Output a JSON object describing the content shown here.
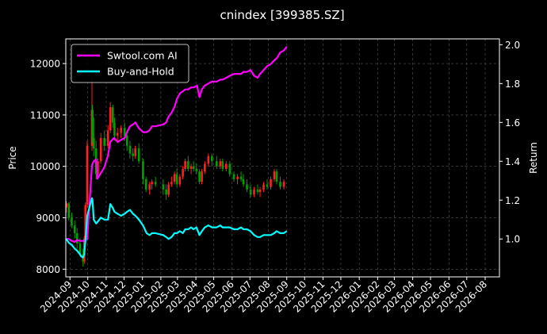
{
  "chart_data": {
    "type": "line",
    "title": "cnindex [399385.SZ]",
    "ylabel": "Price",
    "y2label": "Return",
    "background": "#000000",
    "grid": true,
    "legend_position": "upper-left",
    "ylim": [
      7850,
      12480
    ],
    "y2lim": [
      0.805,
      2.03
    ],
    "xlim": [
      "2024-08-25",
      "2026-08-25"
    ],
    "y_ticks": [
      8000,
      9000,
      10000,
      11000,
      12000
    ],
    "y2_ticks": [
      1.0,
      1.2,
      1.4,
      1.6,
      1.8,
      2.0
    ],
    "x_ticks": [
      "2024-09",
      "2024-10",
      "2024-11",
      "2024-12",
      "2025-01",
      "2025-02",
      "2025-03",
      "2025-04",
      "2025-05",
      "2025-06",
      "2025-07",
      "2025-08",
      "2025-09",
      "2025-10",
      "2025-11",
      "2025-12",
      "2026-01",
      "2026-02",
      "2026-03",
      "2026-04",
      "2026-05",
      "2026-06",
      "2026-07",
      "2026-08"
    ],
    "candles": {
      "up_color": "#ff2020",
      "down_color": "#00a000",
      "ohlc": [
        [
          "2024-08-26",
          9200,
          9320,
          9100,
          9280
        ],
        [
          "2024-08-30",
          9280,
          9300,
          8950,
          9000
        ],
        [
          "2024-09-04",
          9000,
          9100,
          8800,
          8850
        ],
        [
          "2024-09-09",
          8850,
          8950,
          8600,
          8700
        ],
        [
          "2024-09-13",
          8700,
          8800,
          8400,
          8500
        ],
        [
          "2024-09-18",
          8500,
          8600,
          8250,
          8300
        ],
        [
          "2024-09-23",
          8300,
          8400,
          8050,
          8150
        ],
        [
          "2024-09-25",
          8150,
          8650,
          8100,
          8600
        ],
        [
          "2024-09-27",
          8600,
          9300,
          8550,
          9250
        ],
        [
          "2024-09-30",
          9250,
          10500,
          9200,
          10400
        ],
        [
          "2024-10-08",
          10400,
          11700,
          10300,
          11100
        ],
        [
          "2024-10-09",
          11100,
          11200,
          10450,
          10550
        ],
        [
          "2024-10-11",
          10550,
          10950,
          10200,
          10350
        ],
        [
          "2024-10-15",
          10350,
          10500,
          9750,
          9850
        ],
        [
          "2024-10-18",
          9850,
          10150,
          9750,
          10100
        ],
        [
          "2024-10-23",
          10100,
          10650,
          10050,
          10550
        ],
        [
          "2024-10-29",
          10550,
          10700,
          10300,
          10400
        ],
        [
          "2024-11-04",
          10400,
          10800,
          10350,
          10700
        ],
        [
          "2024-11-08",
          10700,
          11250,
          10650,
          11150
        ],
        [
          "2024-11-12",
          11150,
          11200,
          10750,
          10850
        ],
        [
          "2024-11-15",
          10850,
          10950,
          10500,
          10600
        ],
        [
          "2024-11-20",
          10600,
          10750,
          10450,
          10650
        ],
        [
          "2024-11-26",
          10650,
          10800,
          10550,
          10750
        ],
        [
          "2024-12-02",
          10750,
          10850,
          10500,
          10600
        ],
        [
          "2024-12-06",
          10600,
          10700,
          10300,
          10400
        ],
        [
          "2024-12-11",
          10400,
          10500,
          10150,
          10250
        ],
        [
          "2024-12-16",
          10250,
          10350,
          10100,
          10200
        ],
        [
          "2024-12-20",
          10200,
          10400,
          10150,
          10350
        ],
        [
          "2024-12-26",
          10350,
          10450,
          10050,
          10100
        ],
        [
          "2025-01-02",
          10100,
          10150,
          9650,
          9750
        ],
        [
          "2025-01-07",
          9750,
          9800,
          9500,
          9550
        ],
        [
          "2025-01-13",
          9550,
          9700,
          9450,
          9650
        ],
        [
          "2025-01-17",
          9650,
          9750,
          9550,
          9700
        ],
        [
          "2025-01-23",
          9700,
          9800,
          9600,
          9650
        ],
        [
          "2025-02-05",
          9650,
          9750,
          9450,
          9550
        ],
        [
          "2025-02-10",
          9550,
          9650,
          9350,
          9450
        ],
        [
          "2025-02-14",
          9450,
          9700,
          9400,
          9650
        ],
        [
          "2025-02-19",
          9650,
          9800,
          9600,
          9700
        ],
        [
          "2025-02-24",
          9700,
          9900,
          9650,
          9850
        ],
        [
          "2025-02-28",
          9850,
          9950,
          9600,
          9650
        ],
        [
          "2025-03-05",
          9650,
          9850,
          9600,
          9800
        ],
        [
          "2025-03-10",
          9800,
          10000,
          9750,
          9950
        ],
        [
          "2025-03-14",
          9950,
          10150,
          9900,
          10100
        ],
        [
          "2025-03-19",
          10100,
          10200,
          9900,
          9950
        ],
        [
          "2025-03-24",
          9950,
          10050,
          9850,
          10000
        ],
        [
          "2025-03-28",
          10000,
          10100,
          9900,
          9950
        ],
        [
          "2025-04-02",
          9950,
          10050,
          9850,
          9900
        ],
        [
          "2025-04-07",
          9900,
          9950,
          9650,
          9700
        ],
        [
          "2025-04-11",
          9700,
          9950,
          9650,
          9900
        ],
        [
          "2025-04-16",
          9900,
          10100,
          9850,
          10050
        ],
        [
          "2025-04-22",
          10050,
          10250,
          10000,
          10200
        ],
        [
          "2025-04-28",
          10200,
          10250,
          10000,
          10100
        ],
        [
          "2025-05-06",
          10100,
          10200,
          9950,
          10000
        ],
        [
          "2025-05-12",
          10000,
          10150,
          9950,
          10100
        ],
        [
          "2025-05-16",
          10100,
          10150,
          9900,
          9950
        ],
        [
          "2025-05-22",
          9950,
          10100,
          9900,
          10050
        ],
        [
          "2025-05-28",
          10050,
          10100,
          9800,
          9850
        ],
        [
          "2025-06-04",
          9850,
          9900,
          9700,
          9750
        ],
        [
          "2025-06-10",
          9750,
          9850,
          9650,
          9800
        ],
        [
          "2025-06-16",
          9800,
          9900,
          9700,
          9750
        ],
        [
          "2025-06-20",
          9750,
          9850,
          9600,
          9650
        ],
        [
          "2025-06-26",
          9650,
          9750,
          9500,
          9550
        ],
        [
          "2025-07-02",
          9550,
          9650,
          9400,
          9450
        ],
        [
          "2025-07-08",
          9450,
          9600,
          9400,
          9550
        ],
        [
          "2025-07-14",
          9550,
          9650,
          9450,
          9500
        ],
        [
          "2025-07-18",
          9500,
          9600,
          9400,
          9550
        ],
        [
          "2025-07-24",
          9550,
          9700,
          9500,
          9650
        ],
        [
          "2025-07-30",
          9650,
          9750,
          9550,
          9600
        ],
        [
          "2025-08-05",
          9600,
          9800,
          9550,
          9750
        ],
        [
          "2025-08-11",
          9750,
          9950,
          9700,
          9900
        ],
        [
          "2025-08-15",
          9900,
          9950,
          9650,
          9700
        ],
        [
          "2025-08-21",
          9700,
          9800,
          9550,
          9600
        ],
        [
          "2025-08-27",
          9600,
          9750,
          9550,
          9700
        ]
      ]
    },
    "series": [
      {
        "name": "Swtool.com AI",
        "axis": "right",
        "color": "#ff00ff",
        "points": [
          [
            "2024-08-26",
            1.0
          ],
          [
            "2024-08-30",
            1.0
          ],
          [
            "2024-09-04",
            0.99
          ],
          [
            "2024-09-09",
            0.985
          ],
          [
            "2024-09-13",
            0.995
          ],
          [
            "2024-09-18",
            0.99
          ],
          [
            "2024-09-23",
            0.99
          ],
          [
            "2024-09-27",
            0.995
          ],
          [
            "2024-09-30",
            1.0
          ],
          [
            "2024-10-08",
            1.38
          ],
          [
            "2024-10-11",
            1.4
          ],
          [
            "2024-10-15",
            1.41
          ],
          [
            "2024-10-17",
            1.31
          ],
          [
            "2024-10-23",
            1.34
          ],
          [
            "2024-10-29",
            1.37
          ],
          [
            "2024-11-04",
            1.43
          ],
          [
            "2024-11-08",
            1.5
          ],
          [
            "2024-11-14",
            1.52
          ],
          [
            "2024-11-20",
            1.5
          ],
          [
            "2024-11-26",
            1.51
          ],
          [
            "2024-12-02",
            1.52
          ],
          [
            "2024-12-06",
            1.55
          ],
          [
            "2024-12-11",
            1.58
          ],
          [
            "2024-12-16",
            1.59
          ],
          [
            "2024-12-20",
            1.6
          ],
          [
            "2024-12-26",
            1.57
          ],
          [
            "2025-01-02",
            1.55
          ],
          [
            "2025-01-08",
            1.55
          ],
          [
            "2025-01-13",
            1.56
          ],
          [
            "2025-01-17",
            1.58
          ],
          [
            "2025-01-23",
            1.58
          ],
          [
            "2025-02-05",
            1.59
          ],
          [
            "2025-02-10",
            1.6
          ],
          [
            "2025-02-14",
            1.63
          ],
          [
            "2025-02-19",
            1.65
          ],
          [
            "2025-02-24",
            1.68
          ],
          [
            "2025-02-28",
            1.72
          ],
          [
            "2025-03-05",
            1.75
          ],
          [
            "2025-03-10",
            1.76
          ],
          [
            "2025-03-14",
            1.77
          ],
          [
            "2025-03-19",
            1.77
          ],
          [
            "2025-03-24",
            1.78
          ],
          [
            "2025-03-28",
            1.78
          ],
          [
            "2025-04-03",
            1.79
          ],
          [
            "2025-04-07",
            1.73
          ],
          [
            "2025-04-11",
            1.77
          ],
          [
            "2025-04-16",
            1.79
          ],
          [
            "2025-04-22",
            1.8
          ],
          [
            "2025-04-28",
            1.81
          ],
          [
            "2025-05-06",
            1.81
          ],
          [
            "2025-05-12",
            1.82
          ],
          [
            "2025-05-16",
            1.82
          ],
          [
            "2025-05-22",
            1.83
          ],
          [
            "2025-05-28",
            1.84
          ],
          [
            "2025-06-04",
            1.85
          ],
          [
            "2025-06-10",
            1.85
          ],
          [
            "2025-06-16",
            1.85
          ],
          [
            "2025-06-20",
            1.86
          ],
          [
            "2025-06-26",
            1.86
          ],
          [
            "2025-07-02",
            1.87
          ],
          [
            "2025-07-08",
            1.84
          ],
          [
            "2025-07-14",
            1.83
          ],
          [
            "2025-07-18",
            1.85
          ],
          [
            "2025-07-24",
            1.87
          ],
          [
            "2025-07-30",
            1.89
          ],
          [
            "2025-08-05",
            1.9
          ],
          [
            "2025-08-11",
            1.92
          ],
          [
            "2025-08-15",
            1.93
          ],
          [
            "2025-08-21",
            1.96
          ],
          [
            "2025-08-27",
            1.97
          ],
          [
            "2025-09-01",
            1.99
          ]
        ]
      },
      {
        "name": "Buy-and-Hold",
        "axis": "right",
        "color": "#00ffff",
        "points": [
          [
            "2024-08-26",
            1.0
          ],
          [
            "2024-08-30",
            0.98
          ],
          [
            "2024-09-04",
            0.97
          ],
          [
            "2024-09-09",
            0.95
          ],
          [
            "2024-09-13",
            0.94
          ],
          [
            "2024-09-18",
            0.92
          ],
          [
            "2024-09-20",
            0.91
          ],
          [
            "2024-09-23",
            0.905
          ],
          [
            "2024-09-25",
            0.92
          ],
          [
            "2024-09-27",
            0.99
          ],
          [
            "2024-09-30",
            1.12
          ],
          [
            "2024-10-08",
            1.21
          ],
          [
            "2024-10-09",
            1.2
          ],
          [
            "2024-10-11",
            1.1
          ],
          [
            "2024-10-15",
            1.08
          ],
          [
            "2024-10-18",
            1.09
          ],
          [
            "2024-10-23",
            1.11
          ],
          [
            "2024-10-29",
            1.1
          ],
          [
            "2024-11-04",
            1.1
          ],
          [
            "2024-11-08",
            1.18
          ],
          [
            "2024-11-12",
            1.16
          ],
          [
            "2024-11-15",
            1.14
          ],
          [
            "2024-11-20",
            1.13
          ],
          [
            "2024-11-26",
            1.12
          ],
          [
            "2024-12-02",
            1.13
          ],
          [
            "2024-12-06",
            1.14
          ],
          [
            "2024-12-11",
            1.15
          ],
          [
            "2024-12-16",
            1.13
          ],
          [
            "2024-12-20",
            1.12
          ],
          [
            "2024-12-26",
            1.1
          ],
          [
            "2025-01-02",
            1.07
          ],
          [
            "2025-01-08",
            1.03
          ],
          [
            "2025-01-13",
            1.02
          ],
          [
            "2025-01-17",
            1.03
          ],
          [
            "2025-01-23",
            1.03
          ],
          [
            "2025-02-05",
            1.02
          ],
          [
            "2025-02-10",
            1.01
          ],
          [
            "2025-02-14",
            1.0
          ],
          [
            "2025-02-19",
            1.01
          ],
          [
            "2025-02-24",
            1.03
          ],
          [
            "2025-02-28",
            1.03
          ],
          [
            "2025-03-05",
            1.04
          ],
          [
            "2025-03-10",
            1.03
          ],
          [
            "2025-03-14",
            1.05
          ],
          [
            "2025-03-19",
            1.05
          ],
          [
            "2025-03-24",
            1.06
          ],
          [
            "2025-03-28",
            1.05
          ],
          [
            "2025-04-02",
            1.06
          ],
          [
            "2025-04-07",
            1.02
          ],
          [
            "2025-04-11",
            1.04
          ],
          [
            "2025-04-16",
            1.06
          ],
          [
            "2025-04-22",
            1.07
          ],
          [
            "2025-04-28",
            1.06
          ],
          [
            "2025-05-06",
            1.06
          ],
          [
            "2025-05-12",
            1.07
          ],
          [
            "2025-05-16",
            1.06
          ],
          [
            "2025-05-22",
            1.06
          ],
          [
            "2025-05-28",
            1.06
          ],
          [
            "2025-06-04",
            1.05
          ],
          [
            "2025-06-10",
            1.05
          ],
          [
            "2025-06-16",
            1.06
          ],
          [
            "2025-06-20",
            1.05
          ],
          [
            "2025-06-26",
            1.05
          ],
          [
            "2025-07-02",
            1.04
          ],
          [
            "2025-07-08",
            1.02
          ],
          [
            "2025-07-14",
            1.01
          ],
          [
            "2025-07-18",
            1.01
          ],
          [
            "2025-07-24",
            1.02
          ],
          [
            "2025-07-30",
            1.02
          ],
          [
            "2025-08-05",
            1.02
          ],
          [
            "2025-08-11",
            1.03
          ],
          [
            "2025-08-15",
            1.04
          ],
          [
            "2025-08-21",
            1.03
          ],
          [
            "2025-08-27",
            1.03
          ],
          [
            "2025-09-01",
            1.04
          ]
        ]
      }
    ]
  }
}
